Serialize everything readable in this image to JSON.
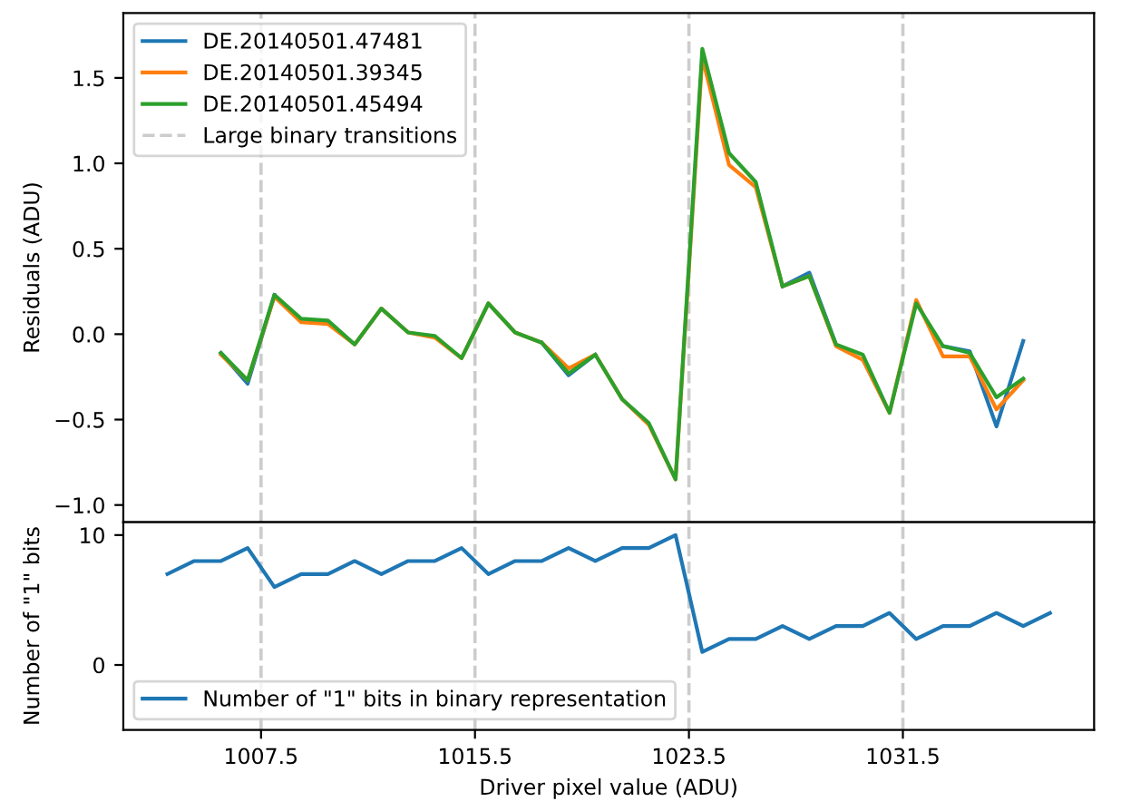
{
  "chart_data": [
    {
      "type": "line",
      "ylabel": "Residuals (ADU)",
      "x": [
        1006,
        1007,
        1008,
        1009,
        1010,
        1011,
        1012,
        1013,
        1014,
        1015,
        1016,
        1017,
        1018,
        1019,
        1020,
        1021,
        1022,
        1023,
        1024,
        1025,
        1026,
        1027,
        1028,
        1029,
        1030,
        1031,
        1032,
        1033,
        1034,
        1035,
        1036
      ],
      "series": [
        {
          "name": "DE.20140501.47481",
          "color": "#1f77b4",
          "values": [
            -0.11,
            -0.29,
            0.23,
            null,
            null,
            null,
            null,
            null,
            null,
            null,
            null,
            null,
            -0.05,
            -0.24,
            -0.12,
            null,
            null,
            null,
            null,
            null,
            null,
            0.28,
            0.36,
            -0.06,
            null,
            null,
            null,
            -0.07,
            -0.1,
            -0.54,
            -0.04
          ]
        },
        {
          "name": "DE.20140501.39345",
          "color": "#ff7f0e",
          "values": [
            -0.12,
            -0.27,
            0.22,
            0.07,
            0.06,
            -0.06,
            0.15,
            0.01,
            -0.02,
            -0.14,
            0.18,
            0.01,
            -0.05,
            -0.2,
            -0.12,
            -0.38,
            -0.53,
            -0.85,
            1.62,
            0.99,
            0.86,
            0.28,
            0.34,
            -0.07,
            -0.15,
            -0.46,
            0.2,
            -0.13,
            -0.13,
            -0.44,
            -0.27
          ]
        },
        {
          "name": "DE.20140501.45494",
          "color": "#2ca02c",
          "values": [
            -0.11,
            -0.27,
            0.23,
            0.09,
            0.08,
            -0.06,
            0.15,
            0.01,
            -0.01,
            -0.14,
            0.18,
            0.01,
            -0.05,
            -0.23,
            -0.12,
            -0.38,
            -0.52,
            -0.85,
            1.67,
            1.06,
            0.89,
            0.28,
            0.34,
            -0.06,
            -0.12,
            -0.46,
            0.18,
            -0.07,
            -0.11,
            -0.37,
            -0.26
          ]
        }
      ],
      "xlim": [
        1002.35,
        1038.65
      ],
      "ylim": [
        -1.1,
        1.88
      ],
      "yticks": [
        {
          "value": -1.0,
          "label": "−1.0"
        },
        {
          "value": -0.5,
          "label": "−0.5"
        },
        {
          "value": 0.0,
          "label": "0.0"
        },
        {
          "value": 0.5,
          "label": "0.5"
        },
        {
          "value": 1.0,
          "label": "1.0"
        },
        {
          "value": 1.5,
          "label": "1.5"
        }
      ],
      "tick_labels": "y",
      "grid": false,
      "legend": "top left",
      "line_style": "solid",
      "marker": "none",
      "ref_lines": [
        {
          "axis": "x",
          "value": 1007.5,
          "label": "Large binary transitions",
          "color": "#cccccc",
          "line_style": "dashed"
        },
        {
          "axis": "x",
          "value": 1015.5,
          "color": "#cccccc",
          "line_style": "dashed"
        },
        {
          "axis": "x",
          "value": 1023.5,
          "color": "#cccccc",
          "line_style": "dashed"
        },
        {
          "axis": "x",
          "value": 1031.5,
          "color": "#cccccc",
          "line_style": "dashed"
        }
      ]
    },
    {
      "type": "line",
      "ylabel": "Number of \"1\" bits",
      "xlabel": "Driver pixel value (ADU)",
      "x": [
        1004,
        1005,
        1006,
        1007,
        1008,
        1009,
        1010,
        1011,
        1012,
        1013,
        1014,
        1015,
        1016,
        1017,
        1018,
        1019,
        1020,
        1021,
        1022,
        1023,
        1024,
        1025,
        1026,
        1027,
        1028,
        1029,
        1030,
        1031,
        1032,
        1033,
        1034,
        1035,
        1036,
        1037
      ],
      "series": [
        {
          "name": "Number of \"1\" bits in binary representation",
          "color": "#1f77b4",
          "values": [
            7,
            8,
            8,
            9,
            6,
            7,
            7,
            8,
            7,
            8,
            8,
            9,
            7,
            8,
            8,
            9,
            8,
            9,
            9,
            10,
            1,
            2,
            2,
            3,
            2,
            3,
            3,
            4,
            2,
            3,
            3,
            4,
            3,
            4
          ]
        }
      ],
      "xlim": [
        1002.35,
        1038.65
      ],
      "ylim": [
        -5,
        11
      ],
      "yticks": [
        0,
        10
      ],
      "xticks": [
        1007.5,
        1015.5,
        1023.5,
        1031.5
      ],
      "grid": false,
      "legend": "bottom left",
      "line_style": "solid",
      "marker": "none",
      "ref_lines": [
        {
          "axis": "x",
          "value": 1007.5,
          "color": "#cccccc",
          "line_style": "dashed"
        },
        {
          "axis": "x",
          "value": 1015.5,
          "color": "#cccccc",
          "line_style": "dashed"
        },
        {
          "axis": "x",
          "value": 1023.5,
          "color": "#cccccc",
          "line_style": "dashed"
        },
        {
          "axis": "x",
          "value": 1031.5,
          "color": "#cccccc",
          "line_style": "dashed"
        }
      ]
    }
  ]
}
